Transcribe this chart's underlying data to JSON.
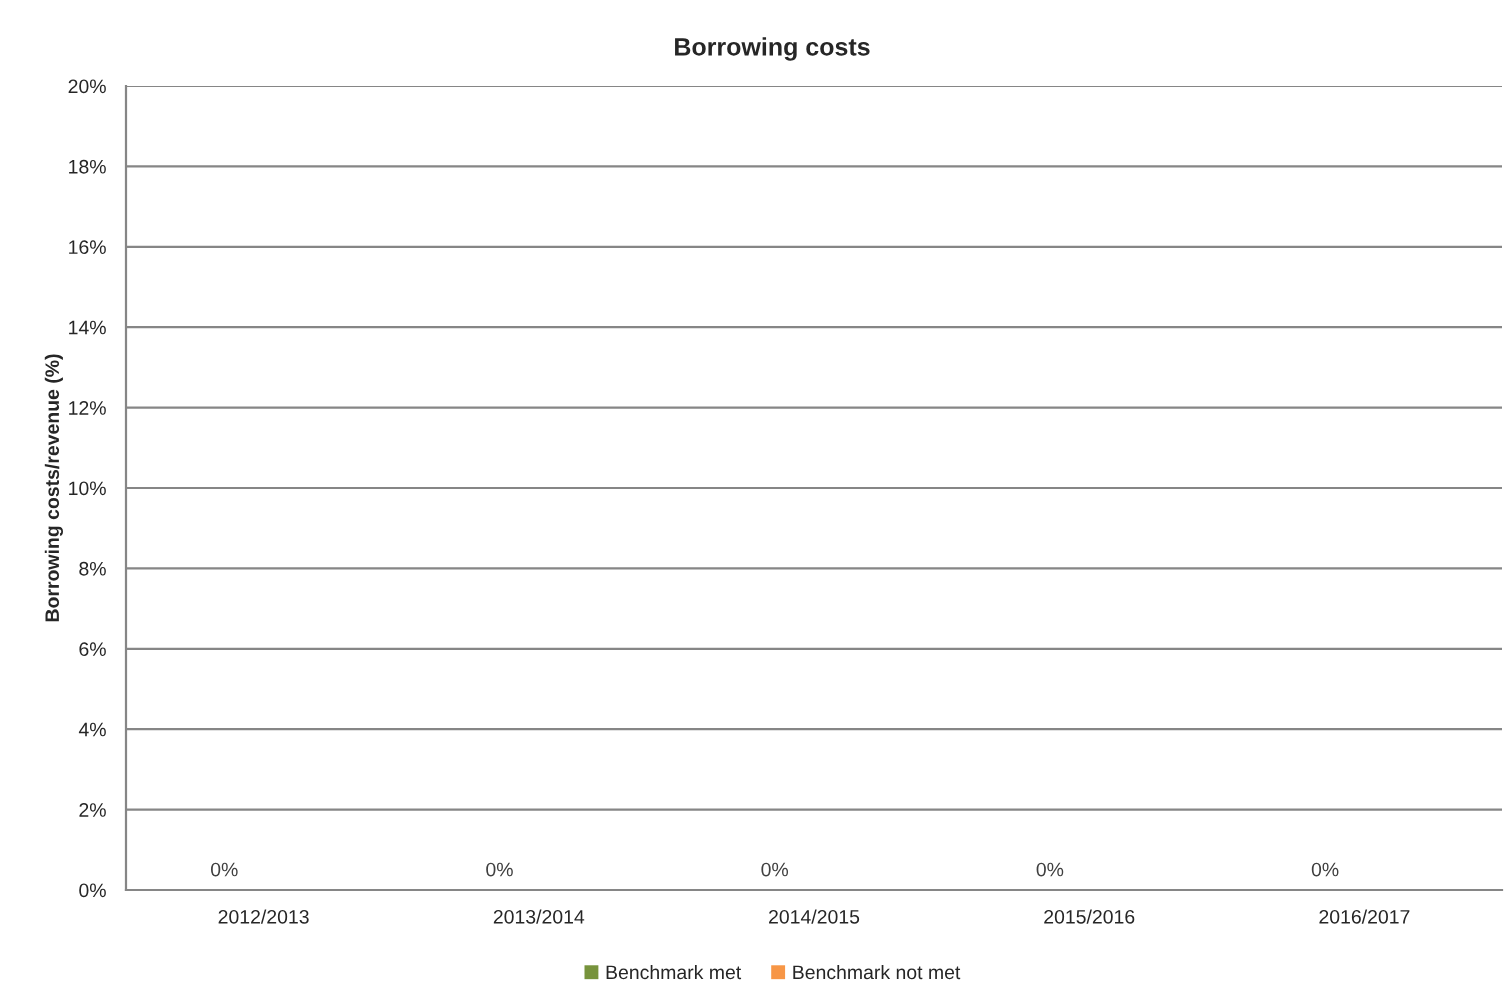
{
  "chart_data": {
    "type": "bar",
    "title": "Borrowing costs",
    "ylabel": "Borrowing costs/revenue (%)",
    "categories": [
      "2012/2013",
      "2013/2014",
      "2014/2015",
      "2015/2016",
      "2016/2017"
    ],
    "series": [
      {
        "name": "Benchmark met",
        "color": "#77933c",
        "values": [
          0,
          0,
          0,
          0,
          0
        ],
        "value_labels": [
          "0%",
          "0%",
          "0%",
          "0%",
          "0%"
        ]
      },
      {
        "name": "Benchmark not met",
        "color": "#f79646",
        "values": [
          null,
          null,
          null,
          null,
          null
        ]
      }
    ],
    "ylim": [
      0,
      20
    ],
    "yticks": [
      {
        "value": 0,
        "label": "0%"
      },
      {
        "value": 2,
        "label": "2%"
      },
      {
        "value": 4,
        "label": "4%"
      },
      {
        "value": 6,
        "label": "6%"
      },
      {
        "value": 8,
        "label": "8%"
      },
      {
        "value": 10,
        "label": "10%"
      },
      {
        "value": 12,
        "label": "12%"
      },
      {
        "value": 14,
        "label": "14%"
      },
      {
        "value": 16,
        "label": "16%"
      },
      {
        "value": 18,
        "label": "18%"
      },
      {
        "value": 20,
        "label": "20%"
      }
    ],
    "grid": "y",
    "legend": "bottom"
  }
}
